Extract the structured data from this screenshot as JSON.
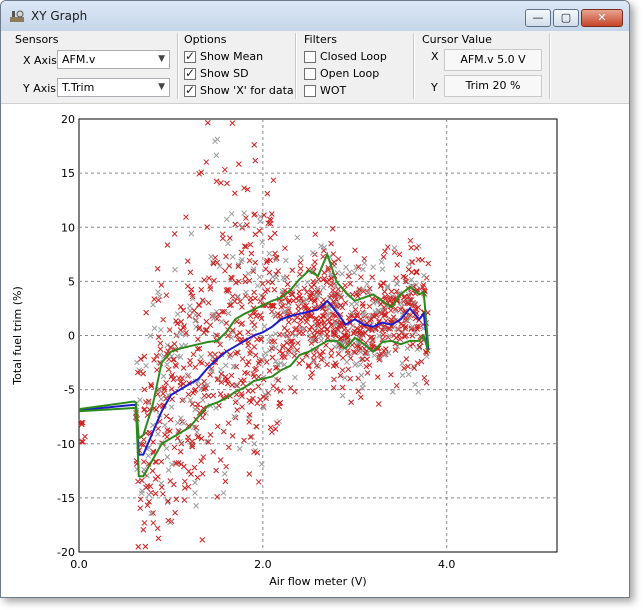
{
  "window": {
    "title": "XY Graph",
    "buttons": {
      "minimize": "—",
      "maximize": "▢",
      "close": "✕"
    }
  },
  "sensors": {
    "title": "Sensors",
    "x_label": "X Axis",
    "x_value": "AFM.v",
    "y_label": "Y Axis",
    "y_value": "T.Trim"
  },
  "options": {
    "title": "Options",
    "items": [
      {
        "label": "Show Mean",
        "checked": true
      },
      {
        "label": "Show SD",
        "checked": true
      },
      {
        "label": "Show 'X' for data",
        "checked": true
      }
    ]
  },
  "filters": {
    "title": "Filters",
    "items": [
      {
        "label": "Closed Loop",
        "checked": false
      },
      {
        "label": "Open Loop",
        "checked": false
      },
      {
        "label": "WOT",
        "checked": false
      }
    ]
  },
  "cursor": {
    "title": "Cursor Value",
    "x_label": "X",
    "x_value": "AFM.v 5.0 V",
    "y_label": "Y",
    "y_value": "Trim 20 %"
  },
  "colors": {
    "scatter_red": "#d02020",
    "scatter_grey": "#9a9a9a",
    "mean": "#1c1ccc",
    "sd": "#2c8a1c",
    "grid": "#8a8a8a"
  },
  "chart_data": {
    "type": "scatter",
    "xlabel": "Air flow meter (V)",
    "ylabel": "Total fuel trim (%)",
    "xlim": [
      0,
      5.2
    ],
    "ylim": [
      -20,
      20
    ],
    "x_ticks": [
      0.0,
      2.0,
      4.0
    ],
    "x_tick_labels": [
      "0.0",
      "2.0",
      "4.0"
    ],
    "y_ticks": [
      -20,
      -15,
      -10,
      -5,
      0,
      5,
      10,
      15,
      20
    ],
    "y_tick_labels": [
      "-20",
      "-15",
      "-10",
      "-5",
      "0",
      "5",
      "10",
      "15",
      "20"
    ],
    "grid": true,
    "series": [
      {
        "style": "line",
        "color_key": "mean",
        "x": [
          0.0,
          0.6,
          0.62,
          0.65,
          0.7,
          0.8,
          0.9,
          1.0,
          1.1,
          1.2,
          1.3,
          1.4,
          1.5,
          1.6,
          1.7,
          1.8,
          1.9,
          2.0,
          2.1,
          2.2,
          2.3,
          2.4,
          2.5,
          2.6,
          2.7,
          2.8,
          2.9,
          3.0,
          3.1,
          3.2,
          3.3,
          3.4,
          3.5,
          3.6,
          3.7,
          3.75,
          3.8
        ],
        "y": [
          -6.9,
          -6.4,
          -6.5,
          -11.0,
          -11.0,
          -9.0,
          -7.0,
          -5.5,
          -5.0,
          -4.5,
          -4.0,
          -3.0,
          -2.2,
          -1.5,
          -1.0,
          -0.5,
          0.0,
          0.3,
          0.8,
          1.5,
          1.8,
          2.0,
          2.2,
          2.4,
          3.2,
          2.2,
          1.0,
          1.5,
          1.0,
          0.8,
          1.2,
          1.0,
          1.5,
          2.5,
          1.5,
          2.0,
          -1.3
        ]
      },
      {
        "style": "line",
        "color_key": "sd",
        "x": [
          0.0,
          0.6,
          0.62,
          0.65,
          0.7,
          0.8,
          0.9,
          1.0,
          1.1,
          1.2,
          1.3,
          1.4,
          1.5,
          1.6,
          1.7,
          1.8,
          1.9,
          2.0,
          2.1,
          2.2,
          2.3,
          2.4,
          2.5,
          2.6,
          2.7,
          2.8,
          2.9,
          3.0,
          3.1,
          3.2,
          3.3,
          3.4,
          3.5,
          3.6,
          3.7,
          3.75,
          3.8
        ],
        "y": [
          -6.8,
          -6.1,
          -6.2,
          -9.5,
          -9.2,
          -6.5,
          -2.5,
          -1.5,
          -1.2,
          -1.0,
          -0.8,
          -0.6,
          -0.5,
          0.3,
          1.5,
          2.0,
          2.4,
          2.8,
          3.2,
          3.5,
          4.2,
          5.2,
          6.0,
          5.5,
          7.5,
          5.0,
          4.0,
          3.2,
          3.5,
          3.8,
          3.2,
          2.6,
          3.8,
          4.5,
          3.8,
          4.0,
          -1.0
        ]
      },
      {
        "style": "line",
        "color_key": "sd",
        "x": [
          0.0,
          0.6,
          0.62,
          0.65,
          0.7,
          0.8,
          0.9,
          1.0,
          1.1,
          1.2,
          1.3,
          1.4,
          1.5,
          1.6,
          1.7,
          1.8,
          1.9,
          2.0,
          2.1,
          2.2,
          2.3,
          2.4,
          2.5,
          2.6,
          2.7,
          2.8,
          2.9,
          3.0,
          3.1,
          3.2,
          3.3,
          3.4,
          3.5,
          3.6,
          3.7,
          3.75,
          3.8
        ],
        "y": [
          -7.0,
          -6.7,
          -6.8,
          -13.0,
          -13.0,
          -11.5,
          -10.0,
          -9.5,
          -9.0,
          -8.5,
          -7.5,
          -6.5,
          -6.2,
          -5.8,
          -5.2,
          -4.8,
          -4.2,
          -4.0,
          -3.8,
          -3.2,
          -2.8,
          -1.8,
          -1.5,
          -1.0,
          -0.5,
          -0.5,
          -1.2,
          -0.2,
          -0.8,
          -1.5,
          -0.6,
          -0.5,
          -0.8,
          -0.5,
          -0.5,
          0.0,
          -1.5
        ]
      }
    ]
  }
}
